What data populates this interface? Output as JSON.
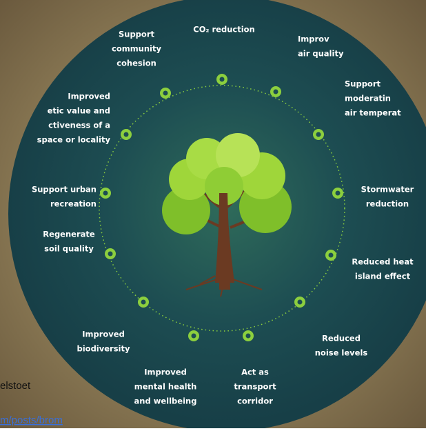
{
  "benefits": [
    {
      "lines": [
        "Support",
        "community",
        "cohesion"
      ]
    },
    {
      "lines": [
        "CO₂ reduction"
      ]
    },
    {
      "lines": [
        "Improv",
        "air quality"
      ]
    },
    {
      "lines": [
        "Support",
        "moderatin",
        "air temperat"
      ]
    },
    {
      "lines": [
        "Improved",
        "etic value and",
        "ctiveness of a",
        "space or locality"
      ]
    },
    {
      "lines": [
        "Support urban",
        "recreation"
      ]
    },
    {
      "lines": [
        "Stormwater",
        "reduction"
      ]
    },
    {
      "lines": [
        "Regenerate",
        "soil quality"
      ]
    },
    {
      "lines": [
        "Reduced heat",
        "island effect"
      ]
    },
    {
      "lines": [
        "Improved",
        "biodiversity"
      ]
    },
    {
      "lines": [
        "Reduced",
        "noise levels"
      ]
    },
    {
      "lines": [
        "Improved",
        "mental health",
        "and wellbeing"
      ]
    },
    {
      "lines": [
        "Act as",
        "transport",
        "corridor"
      ]
    }
  ],
  "background_text": {
    "caption": "elstoet",
    "link": "m/posts/brom"
  }
}
